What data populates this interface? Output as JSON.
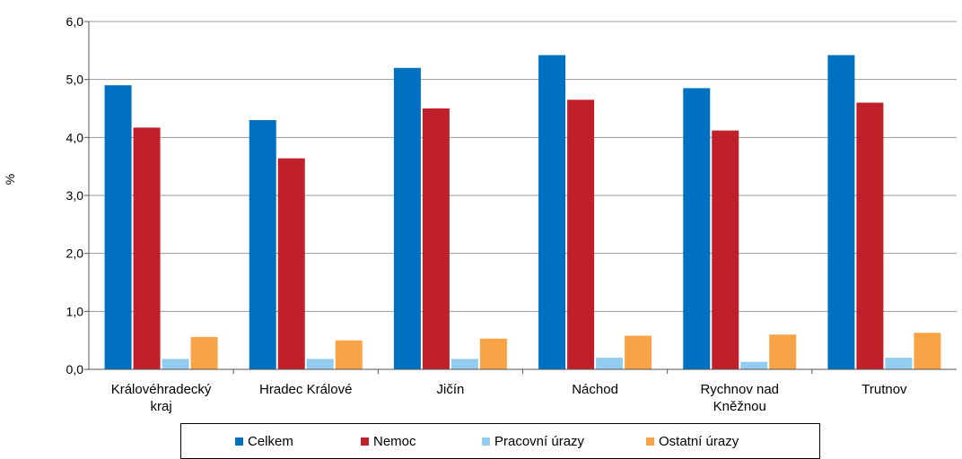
{
  "chart_data": {
    "type": "bar",
    "ylabel": "%",
    "ylim": [
      0,
      6
    ],
    "yticks": [
      "0,0",
      "1,0",
      "2,0",
      "3,0",
      "4,0",
      "5,0",
      "6,0"
    ],
    "grid": true,
    "legend_position": "bottom",
    "categories": [
      [
        "Královéhradecký",
        "kraj"
      ],
      [
        "Hradec Králové"
      ],
      [
        "Jičín"
      ],
      [
        "Náchod"
      ],
      [
        "Rychnov nad",
        "Kněžnou"
      ],
      [
        "Trutnov"
      ]
    ],
    "series": [
      {
        "name": "Celkem",
        "color": "#0070c0",
        "values": [
          4.9,
          4.3,
          5.2,
          5.42,
          4.85,
          5.42
        ]
      },
      {
        "name": "Nemoc",
        "color": "#c0202a",
        "values": [
          4.17,
          3.64,
          4.5,
          4.65,
          4.12,
          4.6
        ]
      },
      {
        "name": "Pracovní úrazy",
        "color": "#92cdf0",
        "values": [
          0.18,
          0.18,
          0.18,
          0.2,
          0.13,
          0.2
        ]
      },
      {
        "name": "Ostatní úrazy",
        "color": "#f7a346",
        "values": [
          0.56,
          0.5,
          0.53,
          0.58,
          0.6,
          0.63
        ]
      }
    ]
  }
}
